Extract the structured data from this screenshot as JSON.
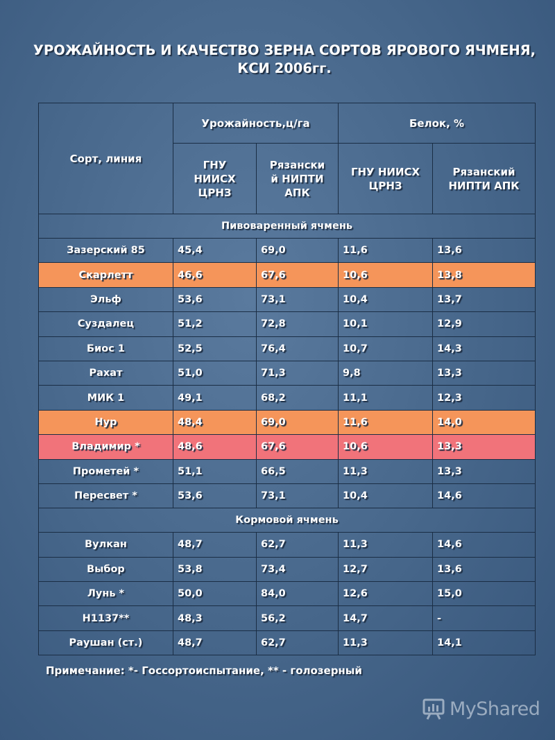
{
  "title": {
    "line1": "УРОЖАЙНОСТЬ И КАЧЕСТВО ЗЕРНА СОРТОВ ЯРОВОГО ЯЧМЕНЯ,",
    "line2": "КСИ 2006гг."
  },
  "table": {
    "headers": {
      "sort": "Сорт, линия",
      "yield": "Урожайность,ц/га",
      "protein": "Белок, %",
      "gnu_yield": "ГНУ НИИСХ ЦРНЗ",
      "ryaz_yield": "Рязанский НИПТИ АПК",
      "gnu_protein": "ГНУ НИИСХ ЦРНЗ",
      "ryaz_protein": "Рязанский НИПТИ АПК"
    },
    "sections": [
      {
        "name": "Пивоваренный ячмень",
        "rows": [
          {
            "sort": "Зазерский 85",
            "values": [
              "45,4",
              "69,0",
              "11,6",
              "13,6"
            ],
            "highlight": ""
          },
          {
            "sort": "Скарлетт",
            "values": [
              "46,6",
              "67,6",
              "10,6",
              "13,8"
            ],
            "highlight": "orange"
          },
          {
            "sort": "Эльф",
            "values": [
              "53,6",
              "73,1",
              "10,4",
              "13,7"
            ],
            "highlight": ""
          },
          {
            "sort": "Суздалец",
            "values": [
              "51,2",
              "72,8",
              "10,1",
              "12,9"
            ],
            "highlight": ""
          },
          {
            "sort": "Биос 1",
            "values": [
              "52,5",
              "76,4",
              "10,7",
              "14,3"
            ],
            "highlight": ""
          },
          {
            "sort": "Рахат",
            "values": [
              "51,0",
              "71,3",
              "9,8",
              "13,3"
            ],
            "highlight": ""
          },
          {
            "sort": "МИК 1",
            "values": [
              "49,1",
              "68,2",
              "11,1",
              "12,3"
            ],
            "highlight": ""
          },
          {
            "sort": "Нур",
            "values": [
              "48,4",
              "69,0",
              "11,6",
              "14,0"
            ],
            "highlight": "orange"
          },
          {
            "sort": "Владимир *",
            "values": [
              "48,6",
              "67,6",
              "10,6",
              "13,3"
            ],
            "highlight": "red"
          },
          {
            "sort": "Прометей *",
            "values": [
              "51,1",
              "66,5",
              "11,3",
              "13,3"
            ],
            "highlight": ""
          },
          {
            "sort": "Пересвет *",
            "values": [
              "53,6",
              "73,1",
              "10,4",
              "14,6"
            ],
            "highlight": ""
          }
        ]
      },
      {
        "name": "Кормовой ячмень",
        "rows": [
          {
            "sort": "Вулкан",
            "values": [
              "48,7",
              "62,7",
              "11,3",
              "14,6"
            ],
            "highlight": ""
          },
          {
            "sort": "Выбор",
            "values": [
              "53,8",
              "73,4",
              "12,7",
              "13,6"
            ],
            "highlight": ""
          },
          {
            "sort": "Лунь *",
            "values": [
              "50,0",
              "84,0",
              "12,6",
              "15,0"
            ],
            "highlight": ""
          },
          {
            "sort": "Н1137**",
            "values": [
              "48,3",
              "56,2",
              "14,7",
              "-"
            ],
            "highlight": ""
          },
          {
            "sort": "Раушан (ст.)",
            "values": [
              "48,7",
              "62,7",
              "11,3",
              "14,1"
            ],
            "highlight": ""
          }
        ]
      }
    ]
  },
  "note": "Примечание: *- Госсортоиспытание, ** - голозерный",
  "watermark": {
    "text": "MyShared",
    "icon": "presentation-board-icon"
  },
  "colors": {
    "orange_row": "#f5955a",
    "red_row": "#f1737a",
    "background": "#46668a"
  }
}
